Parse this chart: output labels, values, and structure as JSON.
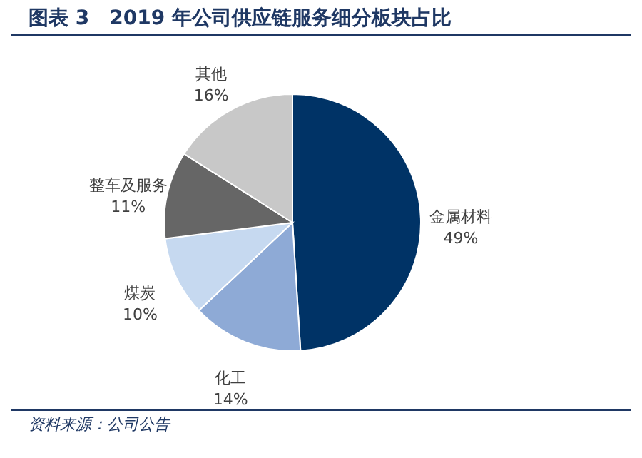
{
  "chart_data": {
    "type": "pie",
    "title": "图表 3　2019 年公司供应链服务细分板块占比",
    "categories": [
      "金属材料",
      "化工",
      "煤炭",
      "整车及服务",
      "其他"
    ],
    "values": [
      49,
      14,
      10,
      11,
      16
    ],
    "value_labels": [
      "49%",
      "14%",
      "10%",
      "11%",
      "16%"
    ],
    "colors": [
      "#003366",
      "#8eaad6",
      "#c6d9f0",
      "#666666",
      "#c8c8c8"
    ],
    "annotations": [
      "资料来源：公司公告"
    ]
  }
}
